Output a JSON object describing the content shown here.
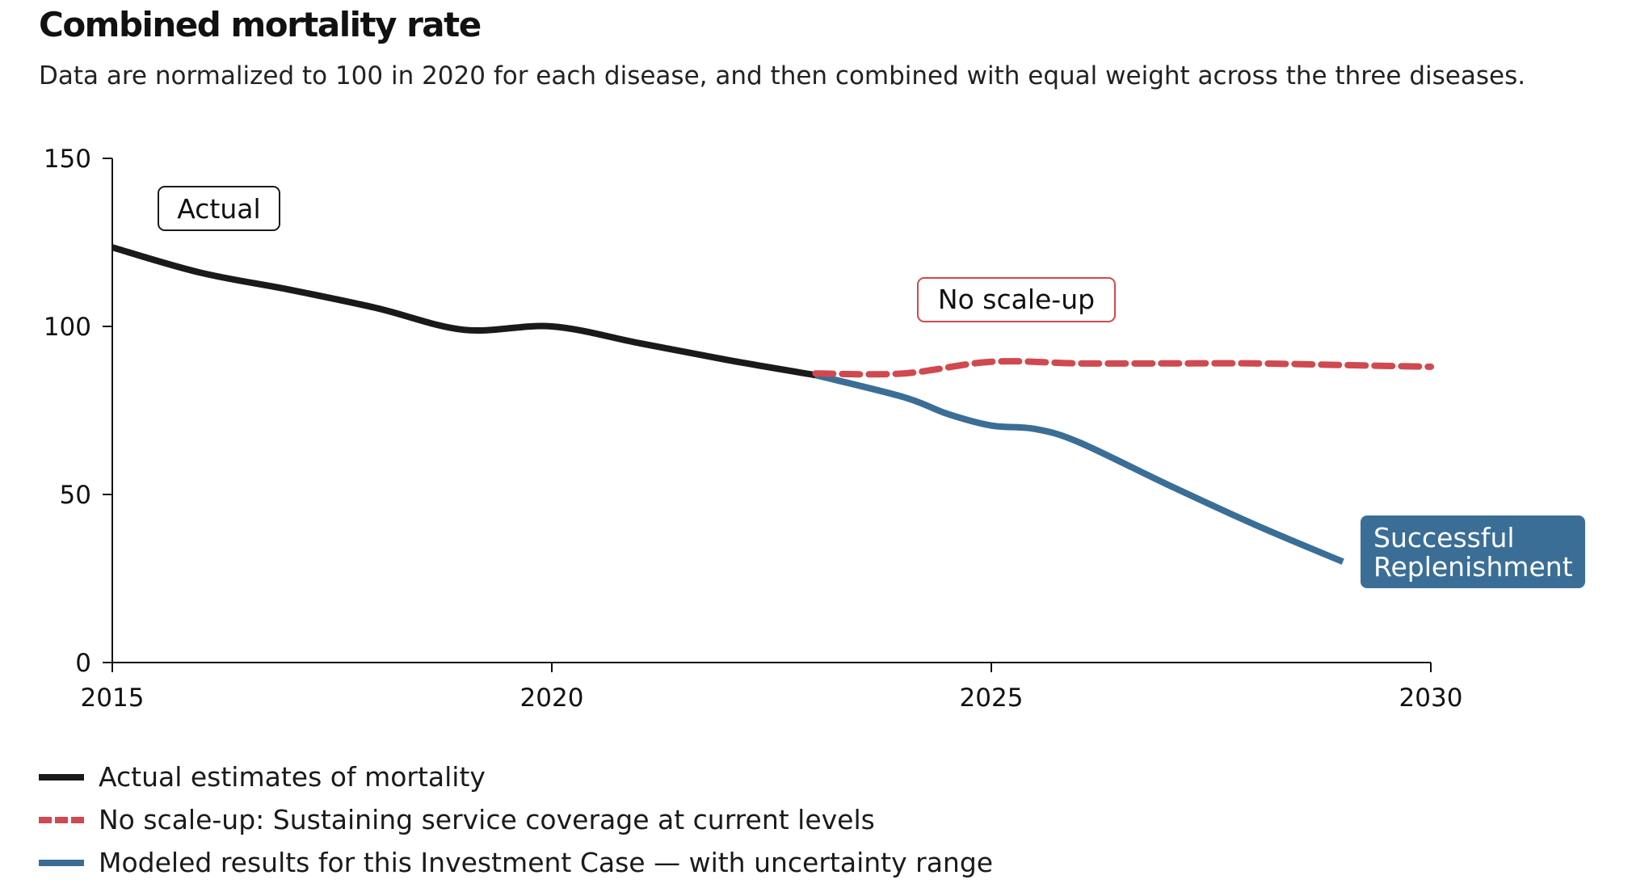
{
  "title": "Combined mortality rate",
  "subtitle": "Data are normalized to 100 in 2020 for each disease, and then combined with equal weight across the three diseases.",
  "chart_data": {
    "type": "line",
    "xlim": [
      2015,
      2030
    ],
    "ylim": [
      0,
      150
    ],
    "x_ticks": [
      "2015",
      "2020",
      "2025",
      "2030"
    ],
    "y_ticks": [
      "0",
      "50",
      "100",
      "150"
    ],
    "grid": false,
    "series": [
      {
        "key": "actual",
        "label": "Actual",
        "color": "#1a1a1a",
        "style": "solid",
        "points": [
          [
            2015,
            123.5
          ],
          [
            2016,
            116
          ],
          [
            2017,
            111
          ],
          [
            2018,
            105.5
          ],
          [
            2019,
            99
          ],
          [
            2020,
            100
          ],
          [
            2021,
            95
          ],
          [
            2022,
            90
          ],
          [
            2023,
            85.5
          ]
        ]
      },
      {
        "key": "no_scale_up",
        "label": "No scale-up",
        "color": "#d0494f",
        "style": "dashed",
        "points": [
          [
            2023,
            86
          ],
          [
            2024,
            86
          ],
          [
            2025,
            89.5
          ],
          [
            2026,
            89
          ],
          [
            2027,
            89
          ],
          [
            2028,
            89
          ],
          [
            2029,
            88.5
          ],
          [
            2030,
            88
          ]
        ]
      },
      {
        "key": "successful_replenishment",
        "label": "Successful Replenishment",
        "color": "#3a6e96",
        "style": "solid",
        "points": [
          [
            2023,
            85.5
          ],
          [
            2024,
            79
          ],
          [
            2024.5,
            74
          ],
          [
            2025,
            70.5
          ],
          [
            2025.5,
            69.5
          ],
          [
            2026,
            65.5
          ],
          [
            2027,
            53
          ],
          [
            2028,
            41
          ],
          [
            2029,
            30
          ]
        ]
      }
    ],
    "annotations": {
      "actual": "Actual",
      "no_scale_up": "No scale-up",
      "successful_replenishment": [
        "Successful",
        "Replenishment"
      ]
    },
    "legend": [
      {
        "label": "Actual estimates of mortality",
        "color": "#1a1a1a",
        "style": "solid"
      },
      {
        "label": "No scale-up: Sustaining service coverage at current levels",
        "color": "#d0494f",
        "style": "dashed"
      },
      {
        "label": "Modeled results for this Investment Case — with uncertainty range",
        "color": "#3a6e96",
        "style": "solid"
      }
    ],
    "legend_position": "bottom-left"
  }
}
